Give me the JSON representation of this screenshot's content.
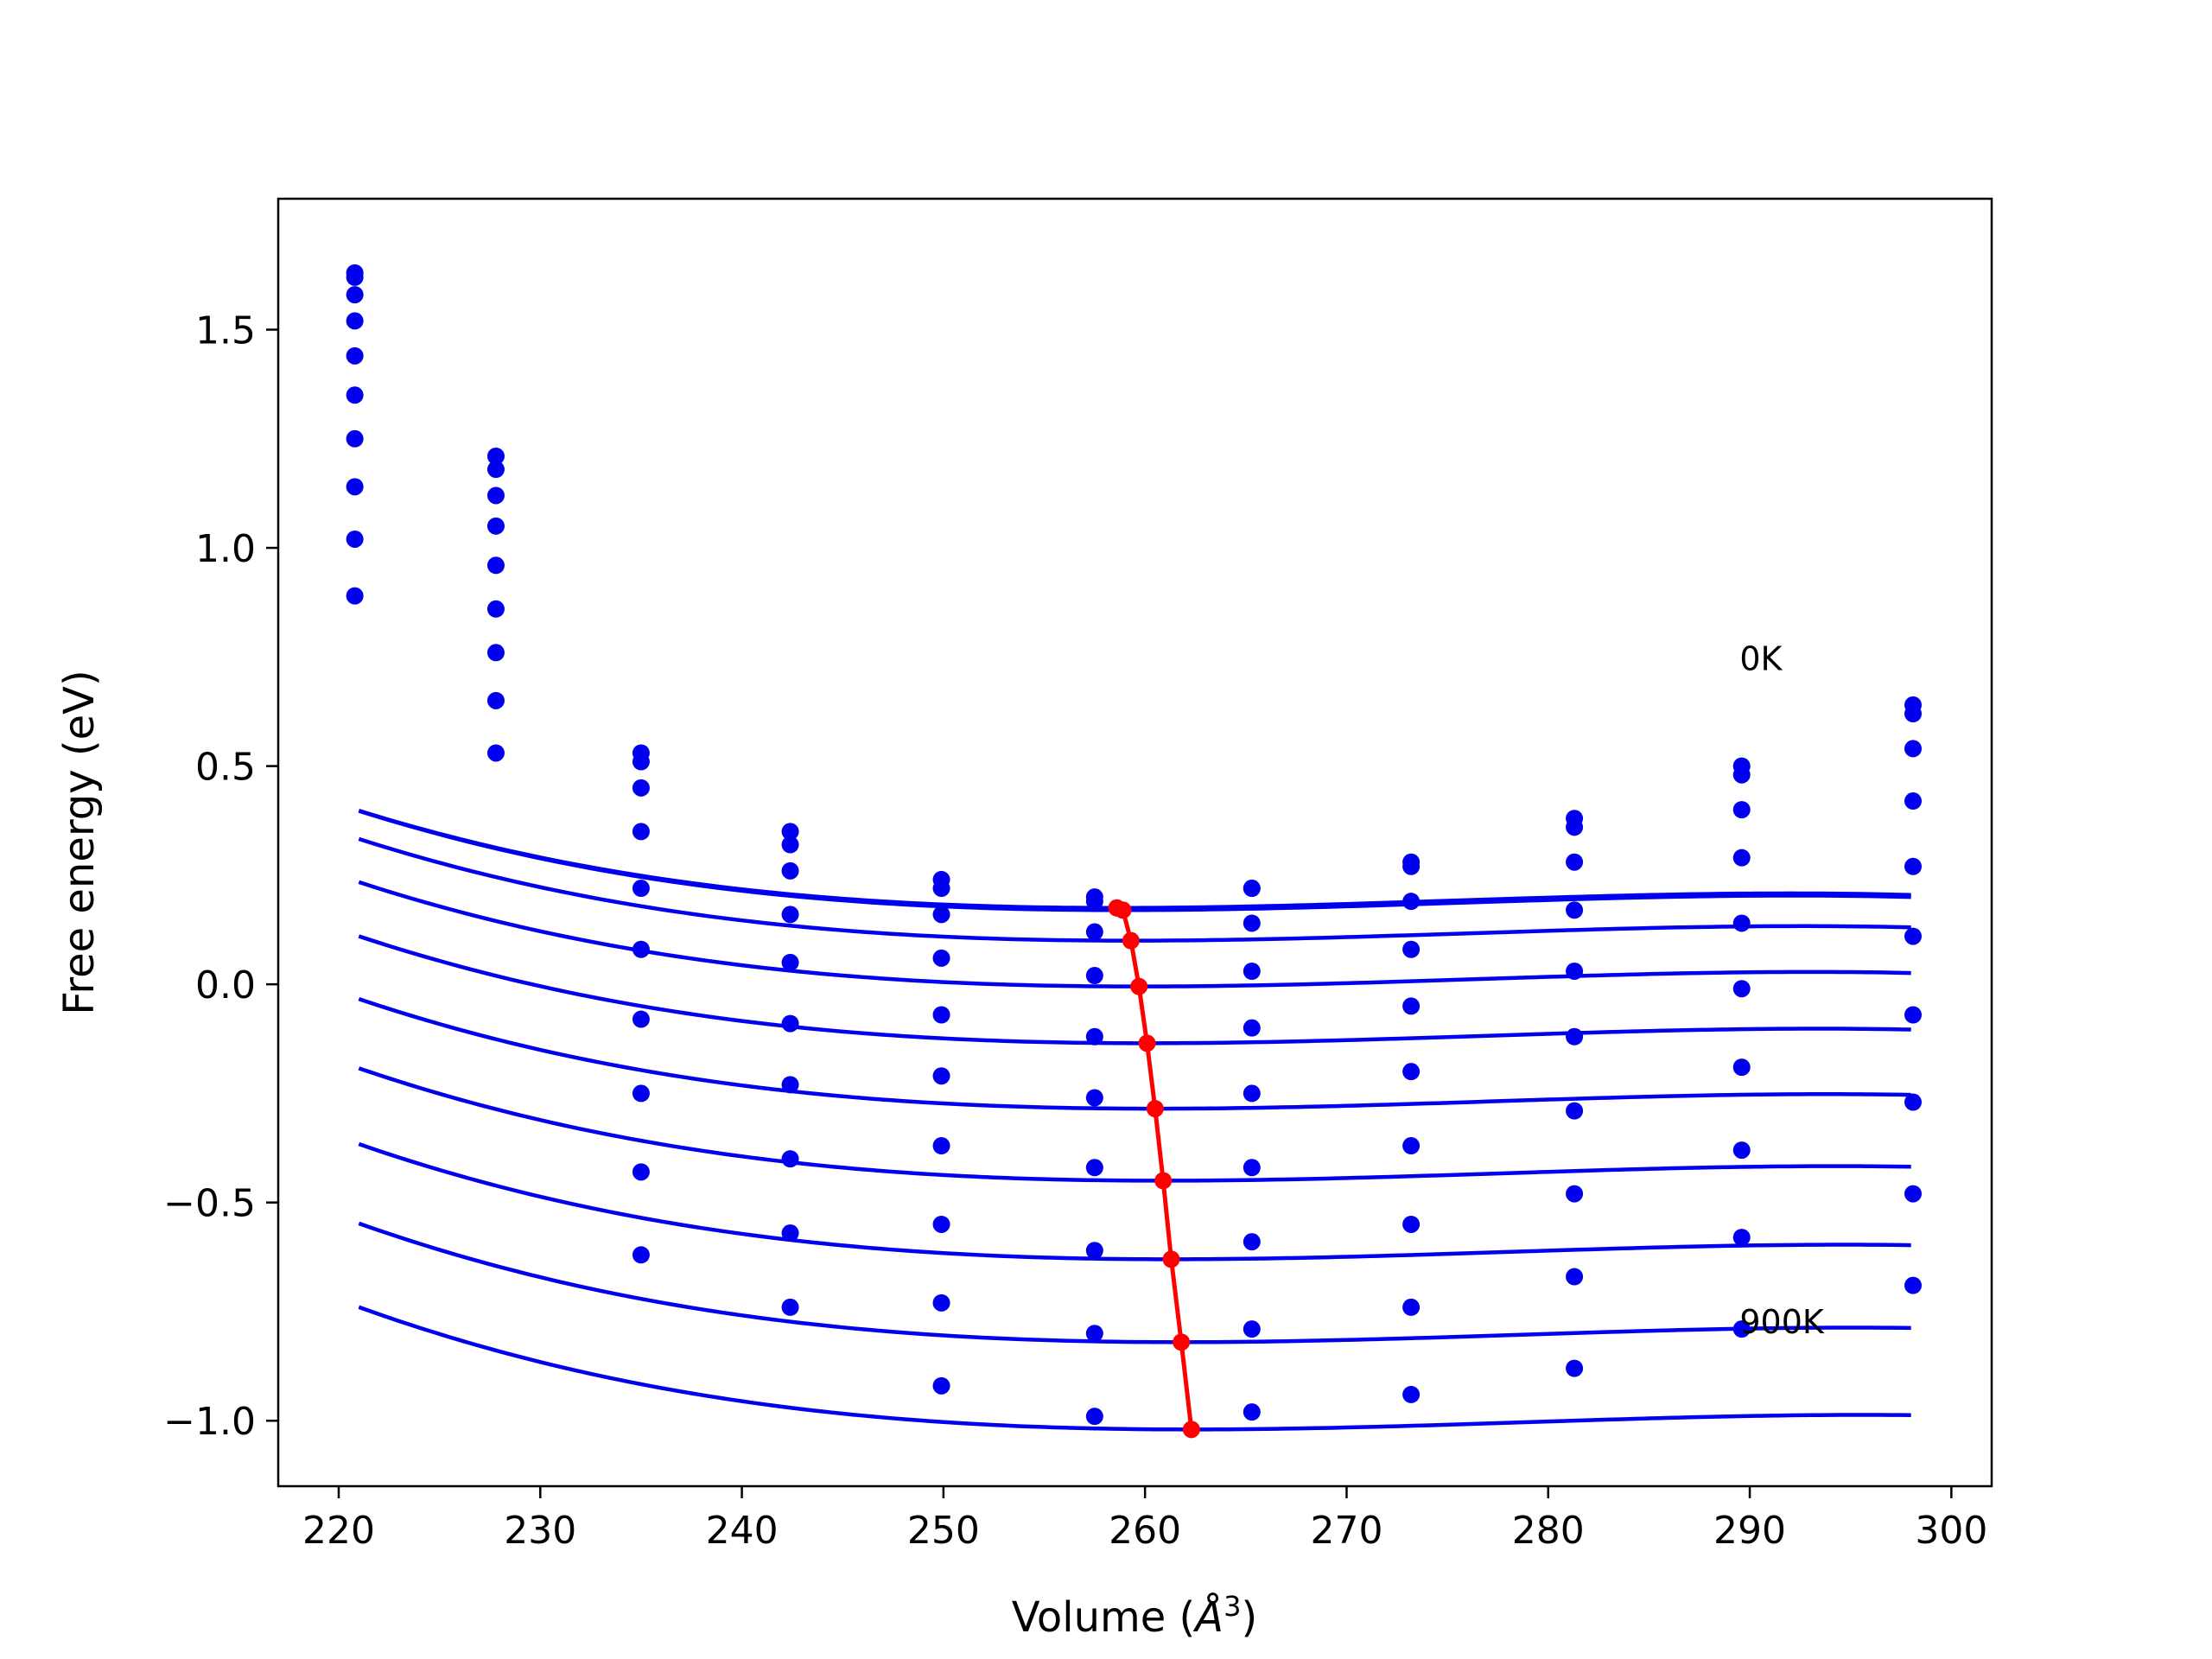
{
  "chart_data": {
    "type": "line",
    "title": "",
    "xlabel": "Volume",
    "xlabel_unit": "Å",
    "xlabel_unit_exp": "3",
    "ylabel": "Free energy (eV)",
    "xlim": [
      217,
      302
    ],
    "ylim": [
      -1.15,
      1.8
    ],
    "x_ticks": [
      220,
      230,
      240,
      250,
      260,
      270,
      280,
      290,
      300
    ],
    "x_tick_labels": [
      "220",
      "230",
      "240",
      "250",
      "260",
      "270",
      "280",
      "290",
      "300"
    ],
    "y_ticks": [
      -1.0,
      -0.5,
      0.0,
      0.5,
      1.0,
      1.5
    ],
    "y_tick_labels": [
      "−1.0",
      "−0.5",
      "0.0",
      "0.5",
      "1.0",
      "1.5"
    ],
    "grid": false,
    "annotations": [
      {
        "text": "0K",
        "x": 289.5,
        "y": 0.72
      },
      {
        "text": "900K",
        "x": 289.5,
        "y": -0.8
      }
    ],
    "colors": {
      "series": "#0000ee",
      "minimum_path": "#ff0000"
    },
    "x": [
      220.8,
      227.8,
      235.0,
      242.4,
      249.9,
      257.5,
      265.3,
      273.2,
      281.3,
      289.6,
      298.1
    ],
    "series": [
      {
        "label": "0K",
        "values": [
          1.63,
          1.21,
          0.53,
          0.35,
          0.24,
          0.2,
          0.22,
          0.28,
          0.38,
          0.5,
          0.64
        ]
      },
      {
        "values": [
          1.62,
          1.18,
          0.51,
          0.32,
          0.22,
          0.19,
          0.22,
          0.27,
          0.36,
          0.48,
          0.62
        ]
      },
      {
        "values": [
          1.58,
          1.12,
          0.45,
          0.26,
          0.16,
          0.12,
          0.14,
          0.19,
          0.28,
          0.4,
          0.54
        ]
      },
      {
        "values": [
          1.52,
          1.05,
          0.35,
          0.16,
          0.06,
          0.02,
          0.03,
          0.08,
          0.17,
          0.29,
          0.42
        ]
      },
      {
        "values": [
          1.44,
          0.96,
          0.22,
          0.05,
          -0.07,
          -0.12,
          -0.1,
          -0.05,
          0.03,
          0.14,
          0.27
        ]
      },
      {
        "values": [
          1.35,
          0.86,
          0.08,
          -0.09,
          -0.21,
          -0.26,
          -0.25,
          -0.2,
          -0.12,
          -0.01,
          0.11
        ]
      },
      {
        "values": [
          1.25,
          0.76,
          -0.08,
          -0.23,
          -0.37,
          -0.42,
          -0.42,
          -0.37,
          -0.29,
          -0.19,
          -0.07
        ]
      },
      {
        "values": [
          1.14,
          0.65,
          -0.25,
          -0.4,
          -0.55,
          -0.61,
          -0.59,
          -0.55,
          -0.48,
          -0.38,
          -0.27
        ]
      },
      {
        "values": [
          1.02,
          0.53,
          -0.43,
          -0.57,
          -0.73,
          -0.8,
          -0.79,
          -0.74,
          -0.67,
          -0.58,
          -0.48
        ]
      },
      {
        "label": "900K",
        "values": [
          0.89,
          null,
          -0.62,
          -0.74,
          -0.92,
          -0.99,
          -0.98,
          -0.94,
          -0.88,
          -0.79,
          -0.69
        ]
      }
    ],
    "fit_curves": [
      {
        "v0": 258.6,
        "emin": 0.175,
        "a": 9e-05,
        "b": 1.8e-06
      },
      {
        "v0": 258.9,
        "emin": 0.17,
        "a": 9e-05,
        "b": 1.8e-06
      },
      {
        "v0": 259.3,
        "emin": 0.1,
        "a": 9e-05,
        "b": 1.8e-06
      },
      {
        "v0": 259.7,
        "emin": -0.005,
        "a": 9e-05,
        "b": 1.8e-06
      },
      {
        "v0": 260.1,
        "emin": -0.135,
        "a": 9e-05,
        "b": 1.8e-06
      },
      {
        "v0": 260.5,
        "emin": -0.285,
        "a": 9e-05,
        "b": 1.8e-06
      },
      {
        "v0": 260.9,
        "emin": -0.45,
        "a": 9e-05,
        "b": 1.8e-06
      },
      {
        "v0": 261.3,
        "emin": -0.63,
        "a": 9e-05,
        "b": 1.8e-06
      },
      {
        "v0": 261.8,
        "emin": -0.82,
        "a": 9e-05,
        "b": 1.8e-06
      },
      {
        "v0": 262.3,
        "emin": -1.02,
        "a": 9e-05,
        "b": 1.8e-06
      }
    ],
    "minimum_path": {
      "x": [
        258.6,
        258.9,
        259.3,
        259.7,
        260.1,
        260.5,
        260.9,
        261.3,
        261.8,
        262.3
      ],
      "y": [
        0.175,
        0.17,
        0.1,
        -0.005,
        -0.135,
        -0.285,
        -0.45,
        -0.63,
        -0.82,
        -1.02
      ]
    }
  }
}
